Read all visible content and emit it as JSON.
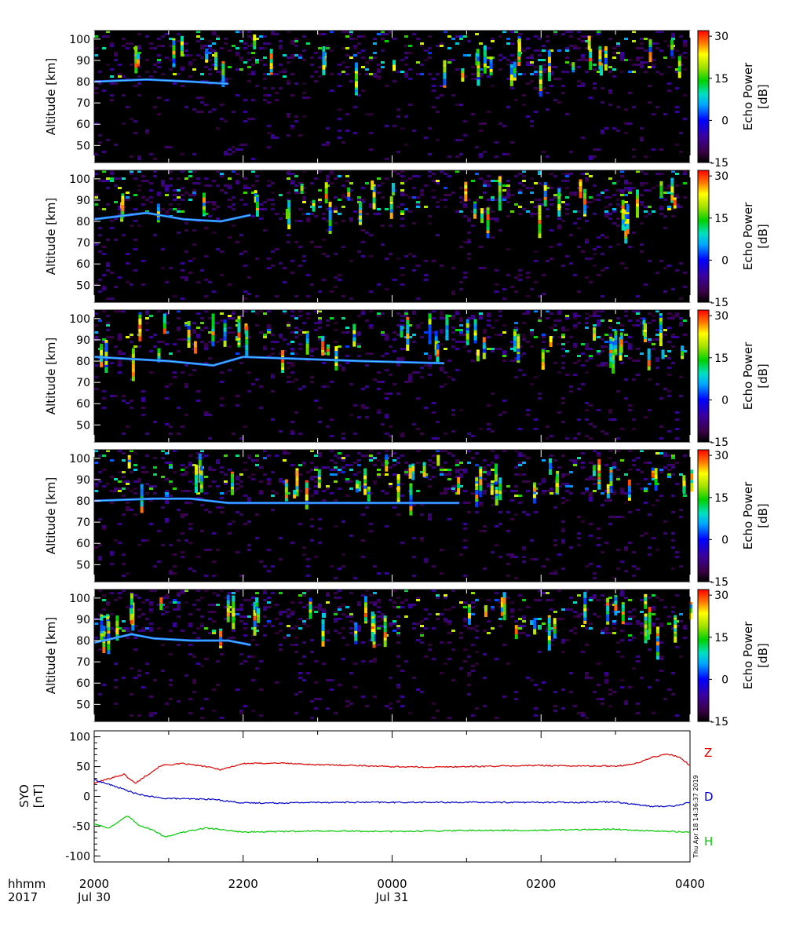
{
  "chart_data": [
    {
      "type": "heatmap",
      "panel": 1,
      "ylabel": "Altitude [km]",
      "colorbar_label": "Echo Power [dB]",
      "ylim": [
        42,
        104
      ],
      "yticks": [
        50,
        60,
        70,
        80,
        90,
        100
      ],
      "colorbar_range": [
        -15,
        32
      ],
      "colorbar_ticks": [
        -15,
        0,
        15,
        30
      ],
      "echo_layer": [
        [
          20.0,
          80
        ],
        [
          20.7,
          81
        ],
        [
          21.3,
          80
        ],
        [
          21.8,
          79
        ]
      ],
      "seed": 11
    },
    {
      "type": "heatmap",
      "panel": 2,
      "ylabel": "Altitude [km]",
      "colorbar_label": "Echo Power [dB]",
      "ylim": [
        42,
        104
      ],
      "yticks": [
        50,
        60,
        70,
        80,
        90,
        100
      ],
      "colorbar_range": [
        -15,
        32
      ],
      "colorbar_ticks": [
        -15,
        0,
        15,
        30
      ],
      "echo_layer": [
        [
          20.0,
          81
        ],
        [
          20.7,
          84
        ],
        [
          21.2,
          81
        ],
        [
          21.7,
          80
        ],
        [
          22.1,
          83
        ]
      ],
      "seed": 23
    },
    {
      "type": "heatmap",
      "panel": 3,
      "ylabel": "Altitude [km]",
      "colorbar_label": "Echo Power [dB]",
      "ylim": [
        42,
        104
      ],
      "yticks": [
        50,
        60,
        70,
        80,
        90,
        100
      ],
      "colorbar_range": [
        -15,
        32
      ],
      "colorbar_ticks": [
        -15,
        0,
        15,
        30
      ],
      "echo_layer": [
        [
          20.0,
          82
        ],
        [
          21.0,
          80
        ],
        [
          21.6,
          78
        ],
        [
          22.0,
          82
        ],
        [
          23.6,
          80
        ],
        [
          24.7,
          79
        ]
      ],
      "seed": 37
    },
    {
      "type": "heatmap",
      "panel": 4,
      "ylabel": "Altitude [km]",
      "colorbar_label": "Echo Power [dB]",
      "ylim": [
        42,
        104
      ],
      "yticks": [
        50,
        60,
        70,
        80,
        90,
        100
      ],
      "colorbar_range": [
        -15,
        32
      ],
      "colorbar_ticks": [
        -15,
        0,
        15,
        30
      ],
      "echo_layer": [
        [
          20.0,
          80
        ],
        [
          20.8,
          81
        ],
        [
          21.3,
          81
        ],
        [
          21.8,
          79
        ],
        [
          23.8,
          79
        ],
        [
          24.9,
          79
        ]
      ],
      "seed": 41
    },
    {
      "type": "heatmap",
      "panel": 5,
      "ylabel": "Altitude [km]",
      "colorbar_label": "Echo Power [dB]",
      "ylim": [
        42,
        104
      ],
      "yticks": [
        50,
        60,
        70,
        80,
        90,
        100
      ],
      "colorbar_range": [
        -15,
        32
      ],
      "colorbar_ticks": [
        -15,
        0,
        15,
        30
      ],
      "echo_layer": [
        [
          20.0,
          79
        ],
        [
          20.5,
          83
        ],
        [
          20.8,
          81
        ],
        [
          21.3,
          80
        ],
        [
          21.8,
          80
        ],
        [
          22.1,
          78
        ]
      ],
      "seed": 53
    },
    {
      "type": "line",
      "ylabel": "SYO [nT]",
      "ylim": [
        -110,
        110
      ],
      "yticks": [
        -100,
        -50,
        0,
        50,
        100
      ],
      "series": [
        {
          "name": "Z",
          "color": "#e00000",
          "x": [
            20.0,
            20.2,
            20.4,
            20.55,
            20.7,
            20.9,
            21.2,
            21.5,
            21.7,
            22.0,
            22.5,
            23.0,
            23.5,
            24.0,
            24.5,
            25.0,
            25.5,
            26.0,
            26.5,
            27.0,
            27.1,
            27.3,
            27.5,
            27.7,
            27.85,
            28.0
          ],
          "y": [
            22,
            30,
            37,
            22,
            35,
            52,
            55,
            50,
            45,
            55,
            56,
            53,
            52,
            50,
            49,
            50,
            51,
            52,
            51,
            51,
            52,
            56,
            66,
            71,
            66,
            52
          ]
        },
        {
          "name": "D",
          "color": "#0000cc",
          "x": [
            20.0,
            20.3,
            20.6,
            20.9,
            21.2,
            21.6,
            22.0,
            22.5,
            23.0,
            23.5,
            24.0,
            25.0,
            26.0,
            26.5,
            27.0,
            27.3,
            27.5,
            27.8,
            28.0
          ],
          "y": [
            28,
            16,
            3,
            -3,
            -4,
            -5,
            -11,
            -11,
            -10,
            -10,
            -10,
            -10,
            -10,
            -10,
            -9,
            -14,
            -17,
            -16,
            -10
          ]
        },
        {
          "name": "H",
          "color": "#00cc00",
          "x": [
            20.0,
            20.2,
            20.45,
            20.6,
            20.8,
            20.95,
            21.2,
            21.5,
            21.8,
            22.0,
            22.5,
            23.0,
            24.0,
            25.0,
            26.0,
            26.5,
            27.0,
            27.5,
            28.0
          ],
          "y": [
            -46,
            -53,
            -33,
            -48,
            -57,
            -68,
            -60,
            -53,
            -57,
            -60,
            -59,
            -58,
            -59,
            -57,
            -57,
            -56,
            -55,
            -58,
            -60
          ]
        }
      ],
      "series_labels": [
        "Z",
        "D",
        "H"
      ],
      "timestamp": "Thu Apr 18 14:36:37 2019"
    }
  ],
  "x_axis": {
    "range_hours": [
      20,
      28
    ],
    "row1_caption": "hhmm",
    "row2_caption": "2017",
    "ticks": [
      {
        "hour": 20,
        "label": "2000",
        "date": "Jul 30"
      },
      {
        "hour": 22,
        "label": "2200",
        "date": ""
      },
      {
        "hour": 24,
        "label": "0000",
        "date": "Jul 31"
      },
      {
        "hour": 26,
        "label": "0200",
        "date": ""
      },
      {
        "hour": 28,
        "label": "0400",
        "date": ""
      }
    ],
    "minor_step_hours": 1
  }
}
